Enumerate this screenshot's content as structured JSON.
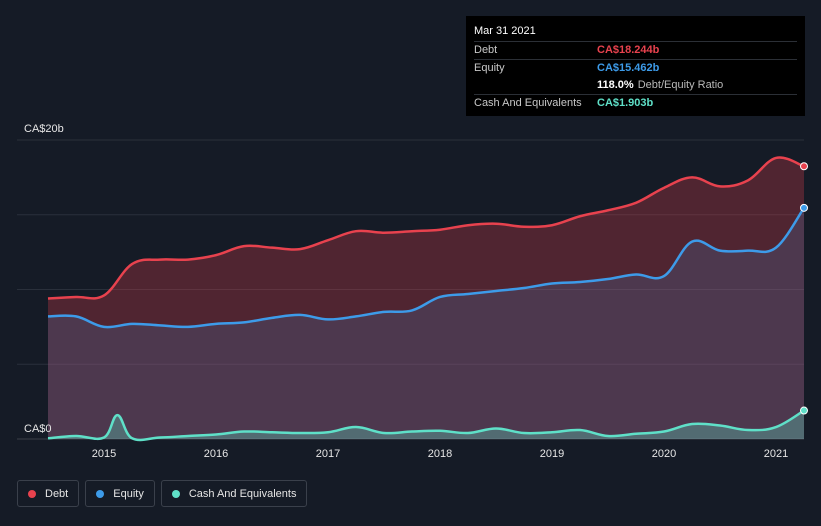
{
  "tooltip": {
    "date": "Mar 31 2021",
    "rows": [
      {
        "label": "Debt",
        "value": "CA$18.244b",
        "color": "#e8424e"
      },
      {
        "label": "Equity",
        "value": "CA$15.462b",
        "color": "#3d9be9"
      },
      {
        "label": "",
        "value": "118.0%",
        "sub": "Debt/Equity Ratio",
        "color": "#ffffff"
      },
      {
        "label": "Cash And Equivalents",
        "value": "CA$1.903b",
        "color": "#5fe0c8"
      }
    ]
  },
  "legend": [
    {
      "label": "Debt",
      "color": "#e8424e"
    },
    {
      "label": "Equity",
      "color": "#3d9be9"
    },
    {
      "label": "Cash And Equivalents",
      "color": "#5fe0c8"
    }
  ],
  "chart_data": {
    "type": "area",
    "y_top_label": "CA$20b",
    "y_bottom_label": "CA$0",
    "ylim": [
      0,
      20
    ],
    "xlim": [
      2014.5,
      2021.25
    ],
    "x_ticks": [
      2015,
      2016,
      2017,
      2018,
      2019,
      2020,
      2021
    ],
    "x_tick_labels": [
      "2015",
      "2016",
      "2017",
      "2018",
      "2019",
      "2020",
      "2021"
    ],
    "grid": true,
    "series": [
      {
        "name": "Debt",
        "color": "#e8424e",
        "points": [
          [
            2014.5,
            9.4
          ],
          [
            2014.75,
            9.5
          ],
          [
            2015.0,
            9.6
          ],
          [
            2015.25,
            11.7
          ],
          [
            2015.5,
            12.0
          ],
          [
            2015.75,
            12.0
          ],
          [
            2016.0,
            12.3
          ],
          [
            2016.25,
            12.9
          ],
          [
            2016.5,
            12.8
          ],
          [
            2016.75,
            12.7
          ],
          [
            2017.0,
            13.3
          ],
          [
            2017.25,
            13.9
          ],
          [
            2017.5,
            13.8
          ],
          [
            2017.75,
            13.9
          ],
          [
            2018.0,
            14.0
          ],
          [
            2018.25,
            14.3
          ],
          [
            2018.5,
            14.4
          ],
          [
            2018.75,
            14.2
          ],
          [
            2019.0,
            14.3
          ],
          [
            2019.25,
            14.9
          ],
          [
            2019.5,
            15.3
          ],
          [
            2019.75,
            15.8
          ],
          [
            2020.0,
            16.8
          ],
          [
            2020.25,
            17.5
          ],
          [
            2020.5,
            16.9
          ],
          [
            2020.75,
            17.3
          ],
          [
            2021.0,
            18.8
          ],
          [
            2021.25,
            18.244
          ]
        ]
      },
      {
        "name": "Equity",
        "color": "#3d9be9",
        "points": [
          [
            2014.5,
            8.2
          ],
          [
            2014.75,
            8.2
          ],
          [
            2015.0,
            7.5
          ],
          [
            2015.25,
            7.7
          ],
          [
            2015.5,
            7.6
          ],
          [
            2015.75,
            7.5
          ],
          [
            2016.0,
            7.7
          ],
          [
            2016.25,
            7.8
          ],
          [
            2016.5,
            8.1
          ],
          [
            2016.75,
            8.3
          ],
          [
            2017.0,
            8.0
          ],
          [
            2017.25,
            8.2
          ],
          [
            2017.5,
            8.5
          ],
          [
            2017.75,
            8.6
          ],
          [
            2018.0,
            9.5
          ],
          [
            2018.25,
            9.7
          ],
          [
            2018.5,
            9.9
          ],
          [
            2018.75,
            10.1
          ],
          [
            2019.0,
            10.4
          ],
          [
            2019.25,
            10.5
          ],
          [
            2019.5,
            10.7
          ],
          [
            2019.75,
            11.0
          ],
          [
            2020.0,
            10.9
          ],
          [
            2020.25,
            13.2
          ],
          [
            2020.5,
            12.6
          ],
          [
            2020.75,
            12.6
          ],
          [
            2021.0,
            12.8
          ],
          [
            2021.25,
            15.462
          ]
        ]
      },
      {
        "name": "Cash And Equivalents",
        "color": "#5fe0c8",
        "points": [
          [
            2014.5,
            0.05
          ],
          [
            2014.75,
            0.2
          ],
          [
            2015.0,
            0.1
          ],
          [
            2015.12,
            1.6
          ],
          [
            2015.25,
            0.05
          ],
          [
            2015.5,
            0.1
          ],
          [
            2015.75,
            0.2
          ],
          [
            2016.0,
            0.3
          ],
          [
            2016.25,
            0.5
          ],
          [
            2016.5,
            0.45
          ],
          [
            2016.75,
            0.4
          ],
          [
            2017.0,
            0.45
          ],
          [
            2017.25,
            0.8
          ],
          [
            2017.5,
            0.4
          ],
          [
            2017.75,
            0.5
          ],
          [
            2018.0,
            0.55
          ],
          [
            2018.25,
            0.4
          ],
          [
            2018.5,
            0.7
          ],
          [
            2018.75,
            0.4
          ],
          [
            2019.0,
            0.45
          ],
          [
            2019.25,
            0.6
          ],
          [
            2019.5,
            0.2
          ],
          [
            2019.75,
            0.35
          ],
          [
            2020.0,
            0.5
          ],
          [
            2020.25,
            1.0
          ],
          [
            2020.5,
            0.9
          ],
          [
            2020.75,
            0.6
          ],
          [
            2021.0,
            0.8
          ],
          [
            2021.25,
            1.903
          ]
        ]
      }
    ]
  }
}
